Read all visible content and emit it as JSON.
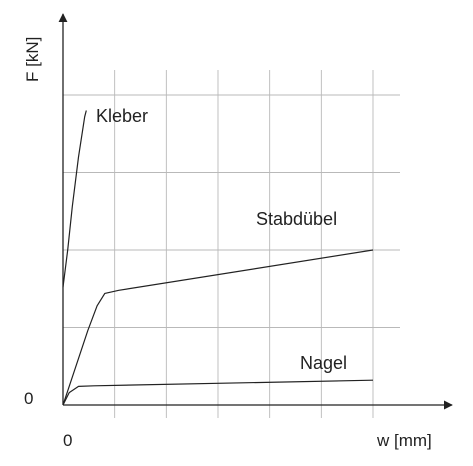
{
  "chart_data": {
    "type": "line",
    "title": "",
    "xlabel": "w [mm]",
    "ylabel": "F [kN]",
    "x_origin_label": "0",
    "y_origin_label": "0",
    "grid": true,
    "xlim": [
      0,
      10
    ],
    "ylim": [
      0,
      10
    ],
    "series": [
      {
        "name": "Kleber",
        "points": [
          [
            0,
            3.8
          ],
          [
            0.15,
            5.0
          ],
          [
            0.3,
            6.4
          ],
          [
            0.5,
            8.0
          ],
          [
            0.7,
            9.3
          ],
          [
            0.75,
            9.5
          ]
        ]
      },
      {
        "name": "Stabdübel",
        "points": [
          [
            0,
            0
          ],
          [
            0.4,
            1.2
          ],
          [
            0.8,
            2.4
          ],
          [
            1.1,
            3.2
          ],
          [
            1.35,
            3.6
          ],
          [
            1.8,
            3.7
          ],
          [
            10,
            5.0
          ]
        ]
      },
      {
        "name": "Nagel",
        "points": [
          [
            0,
            0
          ],
          [
            0.2,
            0.4
          ],
          [
            0.5,
            0.6
          ],
          [
            1.0,
            0.62
          ],
          [
            10,
            0.8
          ]
        ]
      }
    ]
  }
}
